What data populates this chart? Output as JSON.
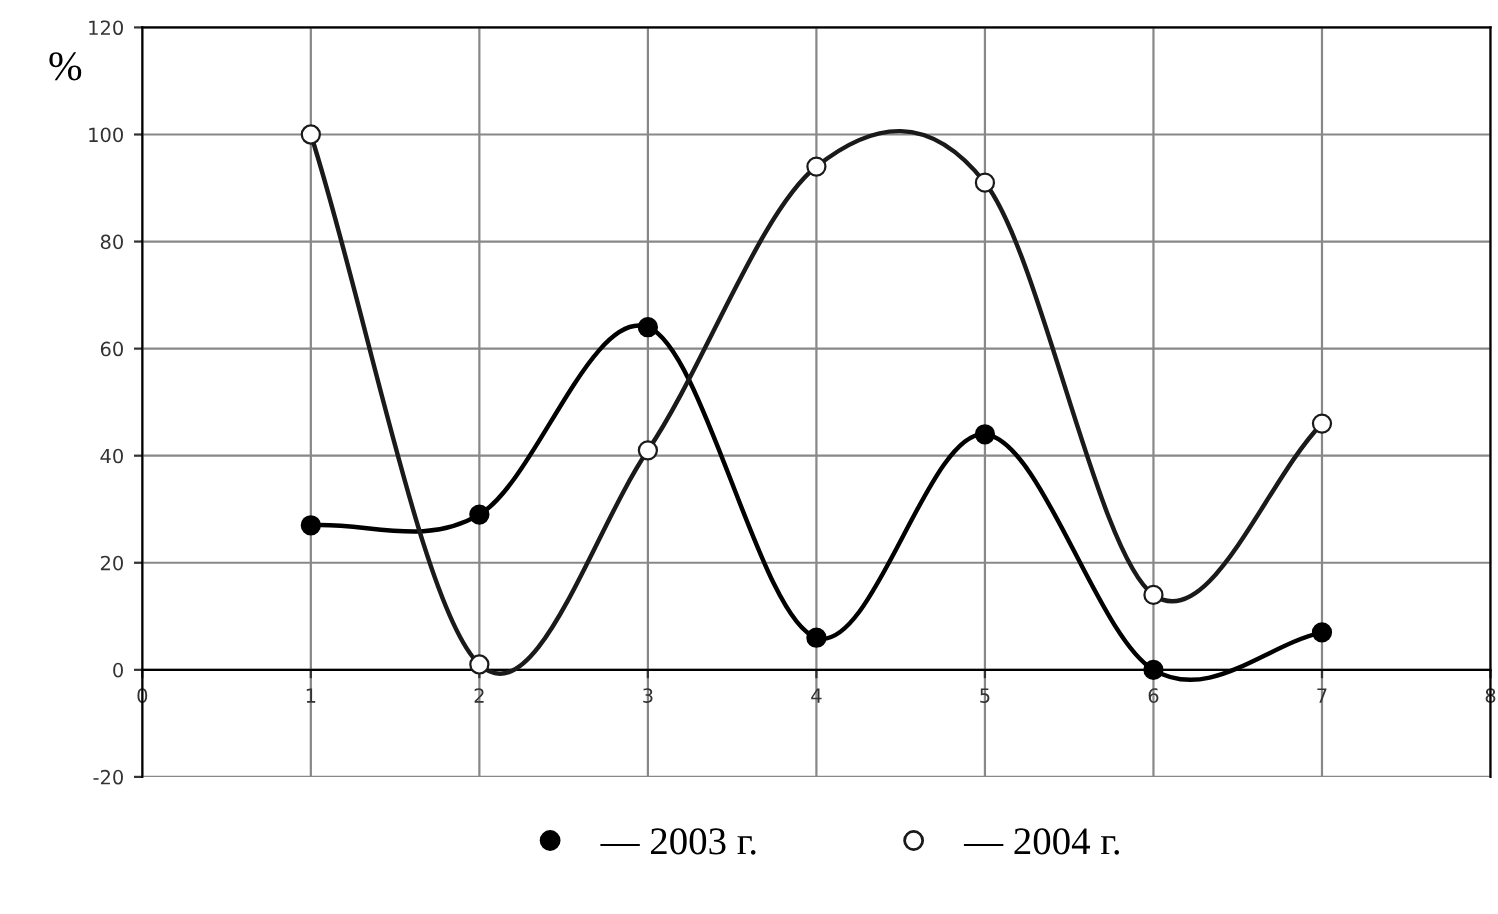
{
  "chart_data": {
    "type": "line",
    "ylabel": "%",
    "x": [
      1,
      2,
      3,
      4,
      5,
      6,
      7
    ],
    "series": [
      {
        "name": "— 2003 г.",
        "color": "#000000",
        "values": [
          27,
          29,
          64,
          6,
          44,
          0,
          7
        ]
      },
      {
        "name": "— 2004 г.",
        "color": "#1a1a1a",
        "values": [
          100,
          1,
          41,
          94,
          91,
          14,
          46
        ]
      }
    ],
    "xlim": [
      0,
      8
    ],
    "xticks": [
      0,
      1,
      2,
      3,
      4,
      5,
      6,
      7,
      8
    ],
    "ylim": [
      -20,
      120
    ],
    "yticks": [
      -20,
      0,
      20,
      40,
      60,
      80,
      100,
      120
    ],
    "grid": true,
    "legend": "bottom",
    "marker": "circle",
    "line_style": "solid"
  }
}
